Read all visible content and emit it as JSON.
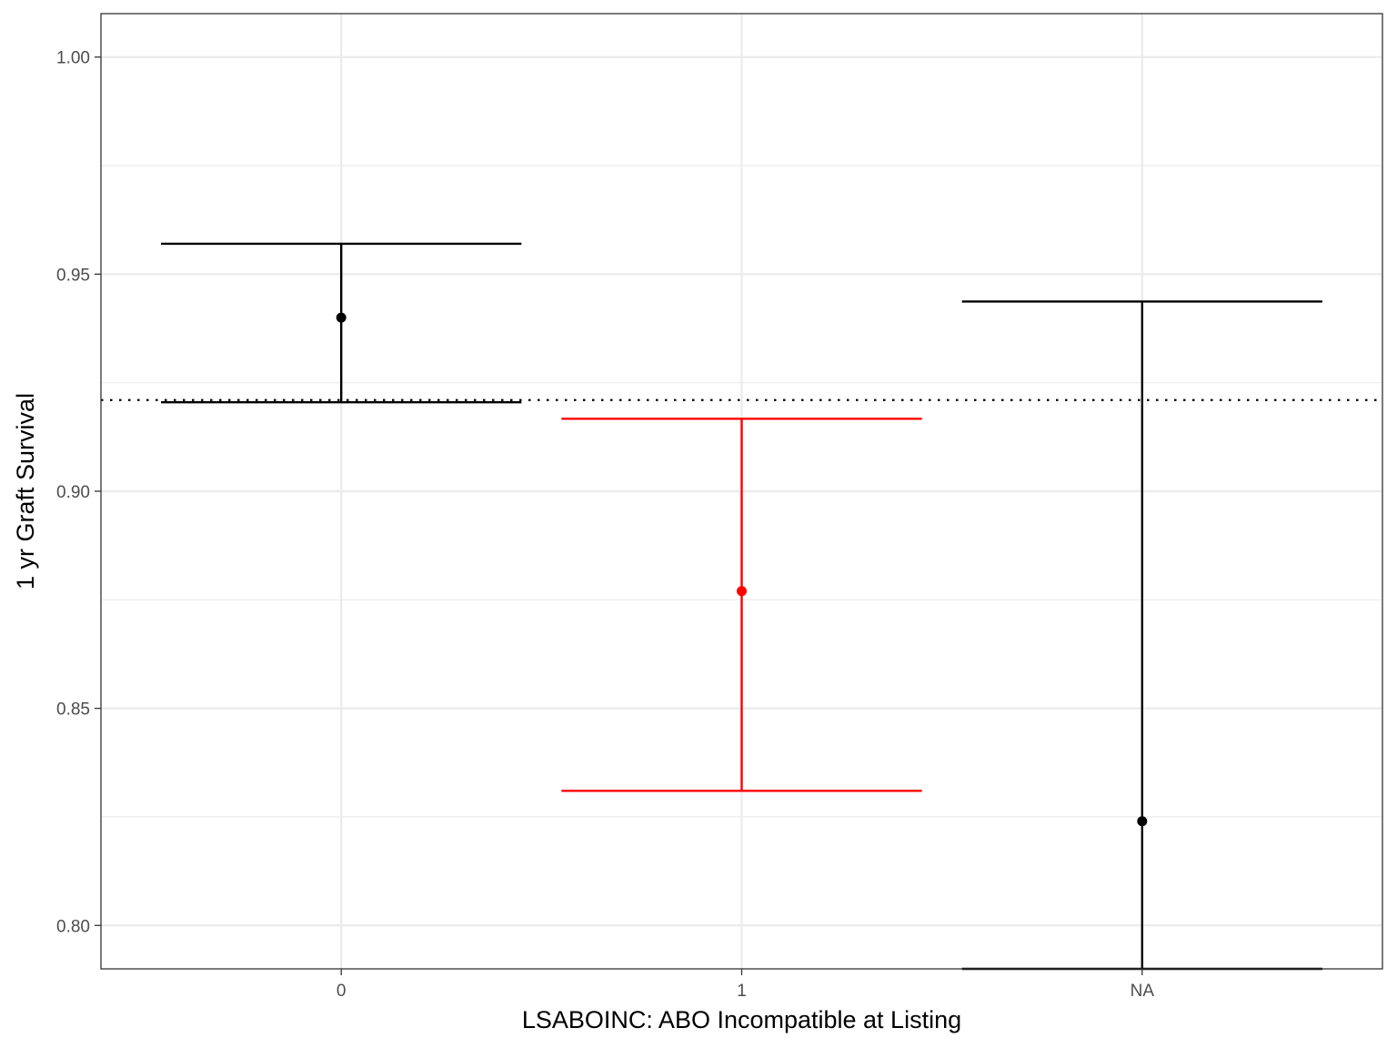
{
  "chart_data": {
    "type": "errorbar",
    "xlabel": "LSABOINC: ABO Incompatible at Listing",
    "ylabel": "1 yr Graft Survival",
    "categories": [
      "0",
      "1",
      "NA"
    ],
    "points": [
      {
        "category": "0",
        "estimate": 0.94,
        "lower": 0.9205,
        "upper": 0.957,
        "color": "#000000"
      },
      {
        "category": "1",
        "estimate": 0.877,
        "lower": 0.831,
        "upper": 0.9167,
        "color": "#ff0000"
      },
      {
        "category": "NA",
        "estimate": 0.824,
        "lower": 0.79,
        "upper": 0.9437,
        "color": "#000000"
      }
    ],
    "reference_line": {
      "y": 0.921,
      "style": "dotted",
      "color": "#000000"
    },
    "ylim": [
      0.79,
      1.01
    ],
    "yticks": [
      0.8,
      0.85,
      0.9,
      0.95,
      1.0
    ],
    "ytick_labels": [
      "0.80",
      "0.85",
      "0.90",
      "0.95",
      "1.00"
    ],
    "grid": true,
    "theme": "bw"
  }
}
